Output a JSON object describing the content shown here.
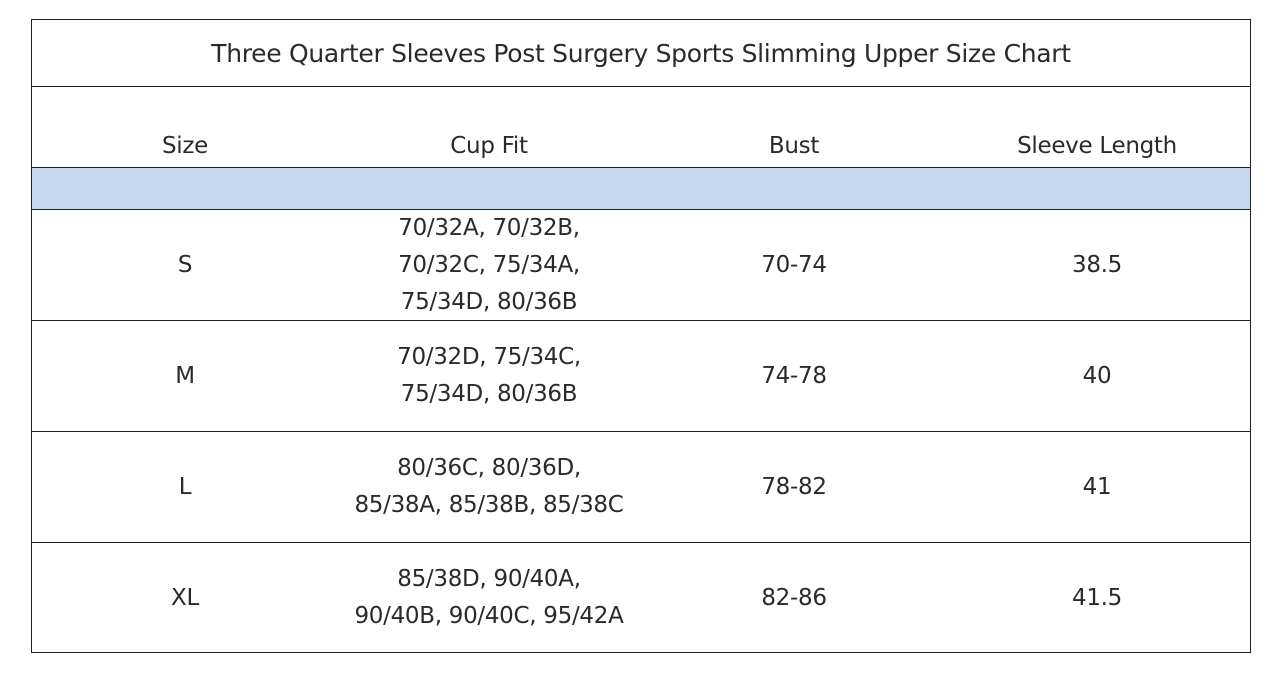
{
  "title": "Three Quarter Sleeves Post Surgery Sports Slimming Upper Size Chart",
  "headers": {
    "size": "Size",
    "cup_fit": "Cup Fit",
    "bust": "Bust",
    "sleeve_length": "Sleeve Length"
  },
  "colors": {
    "band": "#c6d9f0",
    "border": "#222222"
  },
  "rows": [
    {
      "size": "S",
      "cup_fit": [
        "70/32A, 70/32B,",
        "70/32C, 75/34A,",
        "75/34D, 80/36B"
      ],
      "bust": "70-74",
      "sleeve_length": "38.5"
    },
    {
      "size": "M",
      "cup_fit": [
        "70/32D, 75/34C,",
        "75/34D, 80/36B"
      ],
      "bust": "74-78",
      "sleeve_length": "40"
    },
    {
      "size": "L",
      "cup_fit": [
        "80/36C, 80/36D,",
        "85/38A, 85/38B, 85/38C"
      ],
      "bust": "78-82",
      "sleeve_length": "41"
    },
    {
      "size": "XL",
      "cup_fit": [
        "85/38D, 90/40A,",
        "90/40B, 90/40C, 95/42A"
      ],
      "bust": "82-86",
      "sleeve_length": "41.5"
    }
  ]
}
